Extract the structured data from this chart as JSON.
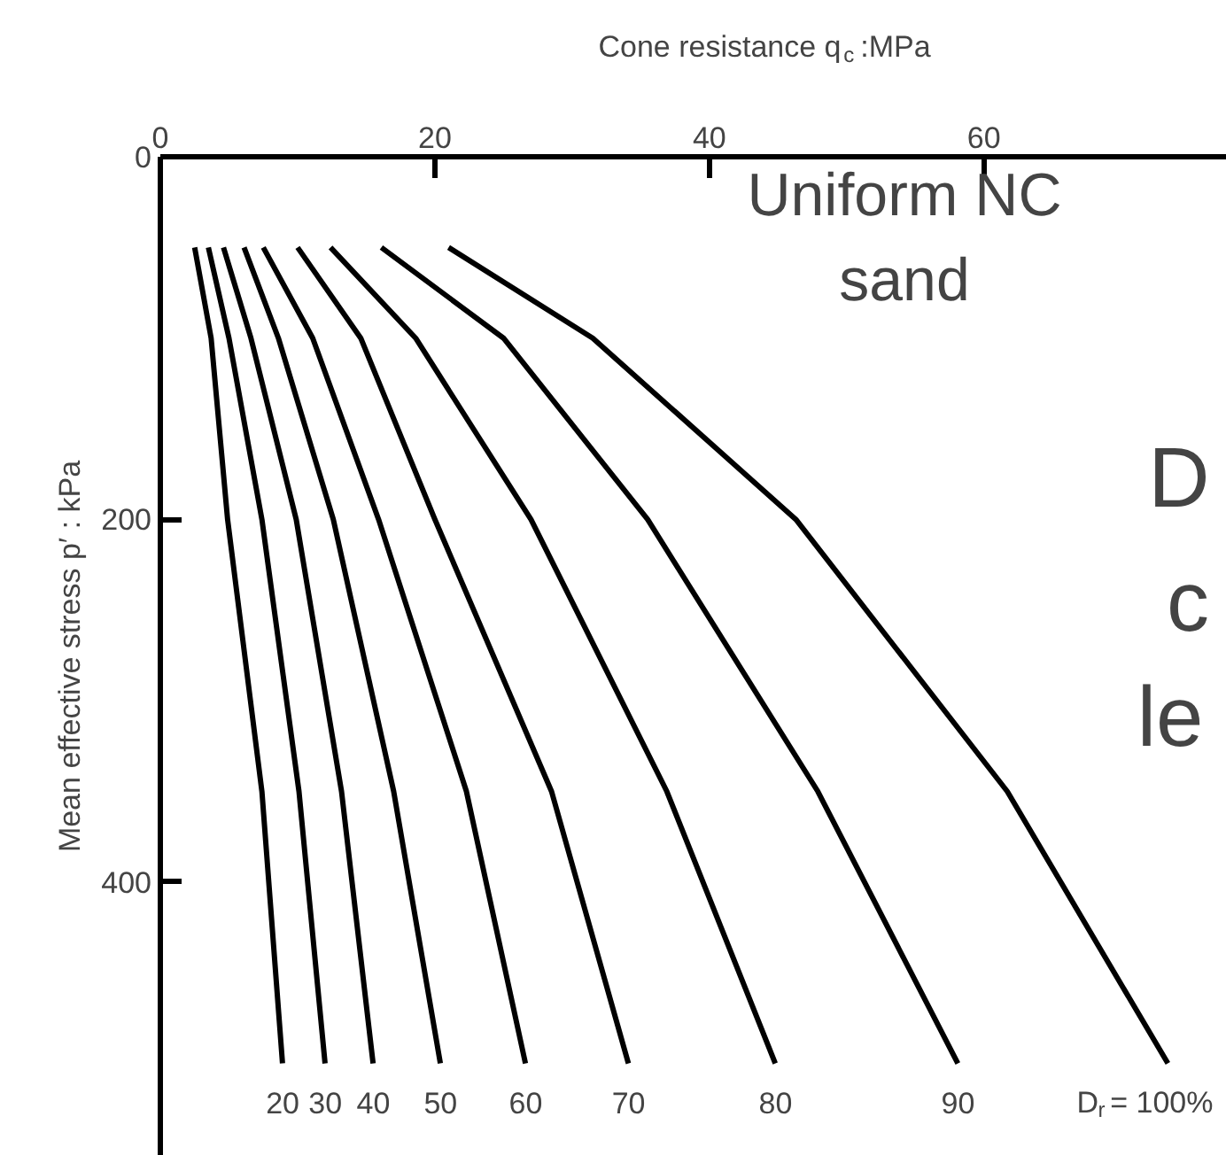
{
  "chart_data": {
    "type": "line",
    "xlabel": "Cone resistance q$_{c}$:MPa",
    "ylabel": "Mean effective stress p′ : kPa",
    "xlim": [
      0,
      77.7
    ],
    "xticks": [
      0,
      20,
      40,
      60
    ],
    "ylim": [
      551,
      0
    ],
    "yticks": [
      0,
      200,
      400
    ],
    "grid": false,
    "legend": false,
    "marker": "none",
    "line_style": "solid",
    "annotations": [
      {
        "text": "Uniform NC\nsand"
      },
      {
        "text": "D"
      },
      {
        "text": "c"
      },
      {
        "text": "le"
      }
    ],
    "series": [
      {
        "name": "20",
        "color": "#000000",
        "x": [
          2.5,
          3.7,
          4.9,
          7.4,
          8.9
        ],
        "values": [
          50,
          100,
          200,
          350,
          500
        ]
      },
      {
        "name": "30",
        "color": "#000000",
        "x": [
          3.5,
          5.0,
          7.4,
          10.1,
          12.0
        ],
        "values": [
          50,
          100,
          200,
          350,
          500
        ]
      },
      {
        "name": "40",
        "color": "#000000",
        "x": [
          4.6,
          6.6,
          9.9,
          13.2,
          15.5
        ],
        "values": [
          50,
          100,
          200,
          350,
          500
        ]
      },
      {
        "name": "50",
        "color": "#000000",
        "x": [
          6.1,
          8.6,
          12.6,
          17.0,
          20.4
        ],
        "values": [
          50,
          100,
          200,
          350,
          500
        ]
      },
      {
        "name": "60",
        "color": "#000000",
        "x": [
          7.5,
          11.1,
          15.9,
          22.3,
          26.6
        ],
        "values": [
          50,
          100,
          200,
          350,
          500
        ]
      },
      {
        "name": "70",
        "color": "#000000",
        "x": [
          10.0,
          14.6,
          20.0,
          28.5,
          34.1
        ],
        "values": [
          50,
          100,
          200,
          350,
          500
        ]
      },
      {
        "name": "80",
        "color": "#000000",
        "x": [
          12.4,
          18.6,
          27.0,
          36.9,
          44.8
        ],
        "values": [
          50,
          100,
          200,
          350,
          500
        ]
      },
      {
        "name": "90",
        "color": "#000000",
        "x": [
          16.1,
          25.0,
          35.5,
          47.9,
          58.1
        ],
        "values": [
          50,
          100,
          200,
          350,
          500
        ]
      },
      {
        "name": "D$_{r}$ = 100%",
        "color": "#000000",
        "x": [
          21.0,
          31.5,
          46.3,
          61.7,
          73.4
        ],
        "values": [
          50,
          100,
          200,
          350,
          500
        ]
      }
    ]
  }
}
